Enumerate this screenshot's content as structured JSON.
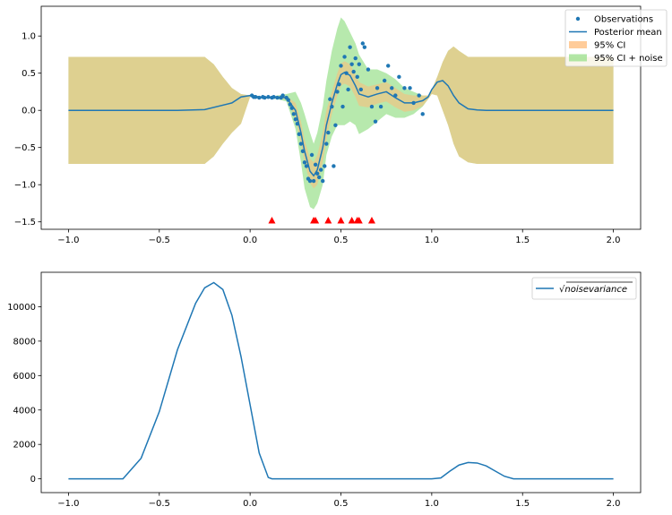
{
  "chart_data": [
    {
      "type": "line",
      "xlim": [
        -1.15,
        2.15
      ],
      "ylim": [
        -1.6,
        1.4
      ],
      "x_ticks": [
        -1.0,
        -0.5,
        0.0,
        0.5,
        1.0,
        1.5,
        2.0
      ],
      "x_tick_labels": [
        "−1.0",
        "−0.5",
        "0.0",
        "0.5",
        "1.0",
        "1.5",
        "2.0"
      ],
      "y_ticks": [
        -1.5,
        -1.0,
        -0.5,
        0.0,
        0.5,
        1.0
      ],
      "y_tick_labels": [
        "−1.5",
        "−1.0",
        "−0.5",
        "0.0",
        "0.5",
        "1.0"
      ],
      "grid": false,
      "legend_position": "top-right",
      "legend": [
        {
          "label": "Observations",
          "kind": "marker",
          "color": "#1f77b4"
        },
        {
          "label": "Posterior mean",
          "kind": "line",
          "color": "#1f77b4"
        },
        {
          "label": "95% CI",
          "kind": "patch",
          "color": "#ffbb78"
        },
        {
          "label": "95% CI + noise",
          "kind": "patch",
          "color": "#98df8a"
        }
      ],
      "mean": {
        "x": [
          -1.0,
          -0.4,
          -0.25,
          -0.1,
          -0.05,
          0.0,
          0.05,
          0.1,
          0.15,
          0.2,
          0.25,
          0.28,
          0.3,
          0.33,
          0.35,
          0.37,
          0.4,
          0.42,
          0.45,
          0.48,
          0.5,
          0.52,
          0.55,
          0.58,
          0.6,
          0.65,
          0.7,
          0.75,
          0.8,
          0.85,
          0.9,
          0.95,
          0.98,
          1.0,
          1.03,
          1.06,
          1.09,
          1.12,
          1.15,
          1.2,
          1.25,
          1.3,
          1.4,
          2.0
        ],
        "y": [
          0.0,
          0.0,
          0.01,
          0.1,
          0.18,
          0.2,
          0.18,
          0.17,
          0.18,
          0.17,
          0.0,
          -0.3,
          -0.55,
          -0.82,
          -0.88,
          -0.8,
          -0.5,
          -0.2,
          0.1,
          0.35,
          0.48,
          0.51,
          0.47,
          0.33,
          0.22,
          0.18,
          0.22,
          0.25,
          0.17,
          0.1,
          0.1,
          0.13,
          0.18,
          0.28,
          0.38,
          0.4,
          0.33,
          0.2,
          0.1,
          0.02,
          0.005,
          0.0,
          0.0,
          0.0
        ]
      },
      "ci_noise": {
        "x": [
          -1.0,
          -0.4,
          -0.25,
          -0.2,
          -0.15,
          -0.1,
          -0.05,
          0.0,
          0.05,
          0.1,
          0.15,
          0.2,
          0.25,
          0.28,
          0.3,
          0.33,
          0.35,
          0.37,
          0.4,
          0.42,
          0.45,
          0.48,
          0.5,
          0.52,
          0.55,
          0.58,
          0.6,
          0.65,
          0.7,
          0.75,
          0.8,
          0.85,
          0.9,
          0.95,
          0.98,
          1.0,
          1.03,
          1.06,
          1.09,
          1.12,
          1.15,
          1.2,
          1.25,
          1.3,
          1.4,
          2.0
        ],
        "upper": [
          0.72,
          0.72,
          0.72,
          0.62,
          0.45,
          0.3,
          0.22,
          0.2,
          0.19,
          0.18,
          0.2,
          0.22,
          0.25,
          0.1,
          -0.05,
          -0.3,
          -0.45,
          -0.3,
          0.05,
          0.4,
          0.8,
          1.1,
          1.25,
          1.2,
          1.05,
          0.9,
          0.75,
          0.55,
          0.55,
          0.5,
          0.42,
          0.3,
          0.25,
          0.2,
          0.2,
          0.28,
          0.45,
          0.65,
          0.8,
          0.86,
          0.8,
          0.72,
          0.72,
          0.72,
          0.72,
          0.72
        ],
        "lower": [
          -0.72,
          -0.72,
          -0.72,
          -0.62,
          -0.45,
          -0.3,
          -0.18,
          0.18,
          0.17,
          0.16,
          0.15,
          0.12,
          -0.25,
          -0.7,
          -1.05,
          -1.3,
          -1.33,
          -1.25,
          -1.0,
          -0.6,
          -0.35,
          -0.2,
          -0.2,
          -0.2,
          -0.15,
          -0.2,
          -0.32,
          -0.25,
          -0.15,
          -0.05,
          -0.1,
          -0.1,
          -0.05,
          0.05,
          0.15,
          0.22,
          0.2,
          0.0,
          -0.2,
          -0.45,
          -0.62,
          -0.7,
          -0.72,
          -0.72,
          -0.72,
          -0.72
        ]
      },
      "ci": {
        "x": [
          -1.0,
          -0.4,
          -0.25,
          -0.2,
          -0.15,
          -0.1,
          -0.05,
          0.0,
          0.05,
          0.1,
          0.15,
          0.2,
          0.25,
          0.28,
          0.3,
          0.33,
          0.35,
          0.37,
          0.4,
          0.42,
          0.45,
          0.48,
          0.5,
          0.52,
          0.55,
          0.58,
          0.6,
          0.65,
          0.7,
          0.75,
          0.8,
          0.85,
          0.9,
          0.95,
          0.98,
          1.0,
          1.03,
          1.06,
          1.09,
          1.12,
          1.15,
          1.2,
          1.25,
          1.3,
          1.4,
          2.0
        ],
        "upper": [
          0.72,
          0.72,
          0.72,
          0.62,
          0.45,
          0.3,
          0.22,
          0.2,
          0.19,
          0.18,
          0.19,
          0.19,
          0.1,
          -0.15,
          -0.4,
          -0.65,
          -0.7,
          -0.6,
          -0.3,
          0.0,
          0.25,
          0.5,
          0.63,
          0.66,
          0.62,
          0.48,
          0.38,
          0.32,
          0.35,
          0.38,
          0.3,
          0.22,
          0.2,
          0.2,
          0.2,
          0.28,
          0.45,
          0.65,
          0.8,
          0.86,
          0.8,
          0.72,
          0.72,
          0.72,
          0.72,
          0.72
        ],
        "lower": [
          -0.72,
          -0.72,
          -0.72,
          -0.62,
          -0.45,
          -0.3,
          -0.18,
          0.18,
          0.17,
          0.16,
          0.16,
          0.15,
          -0.1,
          -0.45,
          -0.7,
          -0.98,
          -1.05,
          -1.0,
          -0.7,
          -0.4,
          -0.05,
          0.2,
          0.33,
          0.36,
          0.32,
          0.18,
          0.06,
          0.04,
          0.09,
          0.12,
          0.04,
          -0.02,
          0.0,
          0.06,
          0.15,
          0.22,
          0.2,
          0.0,
          -0.2,
          -0.45,
          -0.62,
          -0.7,
          -0.72,
          -0.72,
          -0.72,
          -0.72
        ]
      },
      "observations": {
        "x": [
          0.01,
          0.02,
          0.03,
          0.05,
          0.07,
          0.08,
          0.1,
          0.12,
          0.13,
          0.15,
          0.17,
          0.18,
          0.2,
          0.21,
          0.22,
          0.23,
          0.24,
          0.25,
          0.26,
          0.27,
          0.28,
          0.29,
          0.3,
          0.31,
          0.32,
          0.33,
          0.34,
          0.35,
          0.36,
          0.37,
          0.38,
          0.39,
          0.4,
          0.41,
          0.42,
          0.43,
          0.44,
          0.45,
          0.46,
          0.47,
          0.48,
          0.49,
          0.5,
          0.51,
          0.52,
          0.53,
          0.54,
          0.55,
          0.56,
          0.57,
          0.58,
          0.59,
          0.6,
          0.61,
          0.62,
          0.63,
          0.65,
          0.67,
          0.69,
          0.7,
          0.72,
          0.74,
          0.76,
          0.78,
          0.8,
          0.82,
          0.85,
          0.88,
          0.9,
          0.93,
          0.95
        ],
        "y": [
          0.2,
          0.18,
          0.18,
          0.17,
          0.18,
          0.17,
          0.18,
          0.17,
          0.18,
          0.17,
          0.17,
          0.2,
          0.17,
          0.14,
          0.08,
          0.03,
          -0.05,
          -0.12,
          -0.18,
          -0.32,
          -0.45,
          -0.55,
          -0.7,
          -0.75,
          -0.92,
          -0.95,
          -0.6,
          -0.95,
          -0.73,
          -0.85,
          -0.9,
          -0.8,
          -0.95,
          -0.75,
          -0.45,
          -0.3,
          0.15,
          0.05,
          -0.75,
          -0.2,
          0.25,
          0.35,
          0.6,
          0.05,
          0.72,
          0.5,
          0.28,
          0.85,
          0.62,
          0.52,
          0.7,
          0.45,
          0.62,
          0.28,
          0.9,
          0.85,
          0.55,
          0.05,
          -0.15,
          0.3,
          0.05,
          0.4,
          0.6,
          0.3,
          0.2,
          0.45,
          0.3,
          0.3,
          0.1,
          0.2,
          -0.05
        ],
        "color": "#1f77b4"
      },
      "markers": {
        "x": [
          0.12,
          0.35,
          0.36,
          0.43,
          0.5,
          0.56,
          0.59,
          0.6,
          0.67
        ],
        "y": -1.48,
        "color": "#ff0000"
      }
    },
    {
      "type": "line",
      "xlim": [
        -1.15,
        2.15
      ],
      "ylim": [
        -800,
        12000
      ],
      "x_ticks": [
        -1.0,
        -0.5,
        0.0,
        0.5,
        1.0,
        1.5,
        2.0
      ],
      "x_tick_labels": [
        "−1.0",
        "−0.5",
        "0.0",
        "0.5",
        "1.0",
        "1.5",
        "2.0"
      ],
      "y_ticks": [
        0,
        2000,
        4000,
        6000,
        8000,
        10000
      ],
      "y_tick_labels": [
        "0",
        "2000",
        "4000",
        "6000",
        "8000",
        "10000"
      ],
      "grid": false,
      "legend_position": "top-right",
      "legend": [
        {
          "label": "√noisevariance",
          "kind": "line",
          "color": "#1f77b4"
        }
      ],
      "series": [
        {
          "name": "√noisevariance",
          "color": "#1f77b4",
          "x": [
            -1.0,
            -0.7,
            -0.6,
            -0.5,
            -0.4,
            -0.3,
            -0.25,
            -0.2,
            -0.15,
            -0.1,
            -0.05,
            0.0,
            0.05,
            0.1,
            0.12,
            1.0,
            1.05,
            1.1,
            1.15,
            1.2,
            1.25,
            1.3,
            1.35,
            1.4,
            1.45,
            2.0
          ],
          "y": [
            0,
            0,
            1200,
            3900,
            7500,
            10200,
            11100,
            11400,
            11000,
            9500,
            7100,
            4300,
            1500,
            80,
            0,
            0,
            50,
            450,
            800,
            950,
            920,
            750,
            450,
            150,
            0,
            0
          ]
        }
      ]
    }
  ]
}
